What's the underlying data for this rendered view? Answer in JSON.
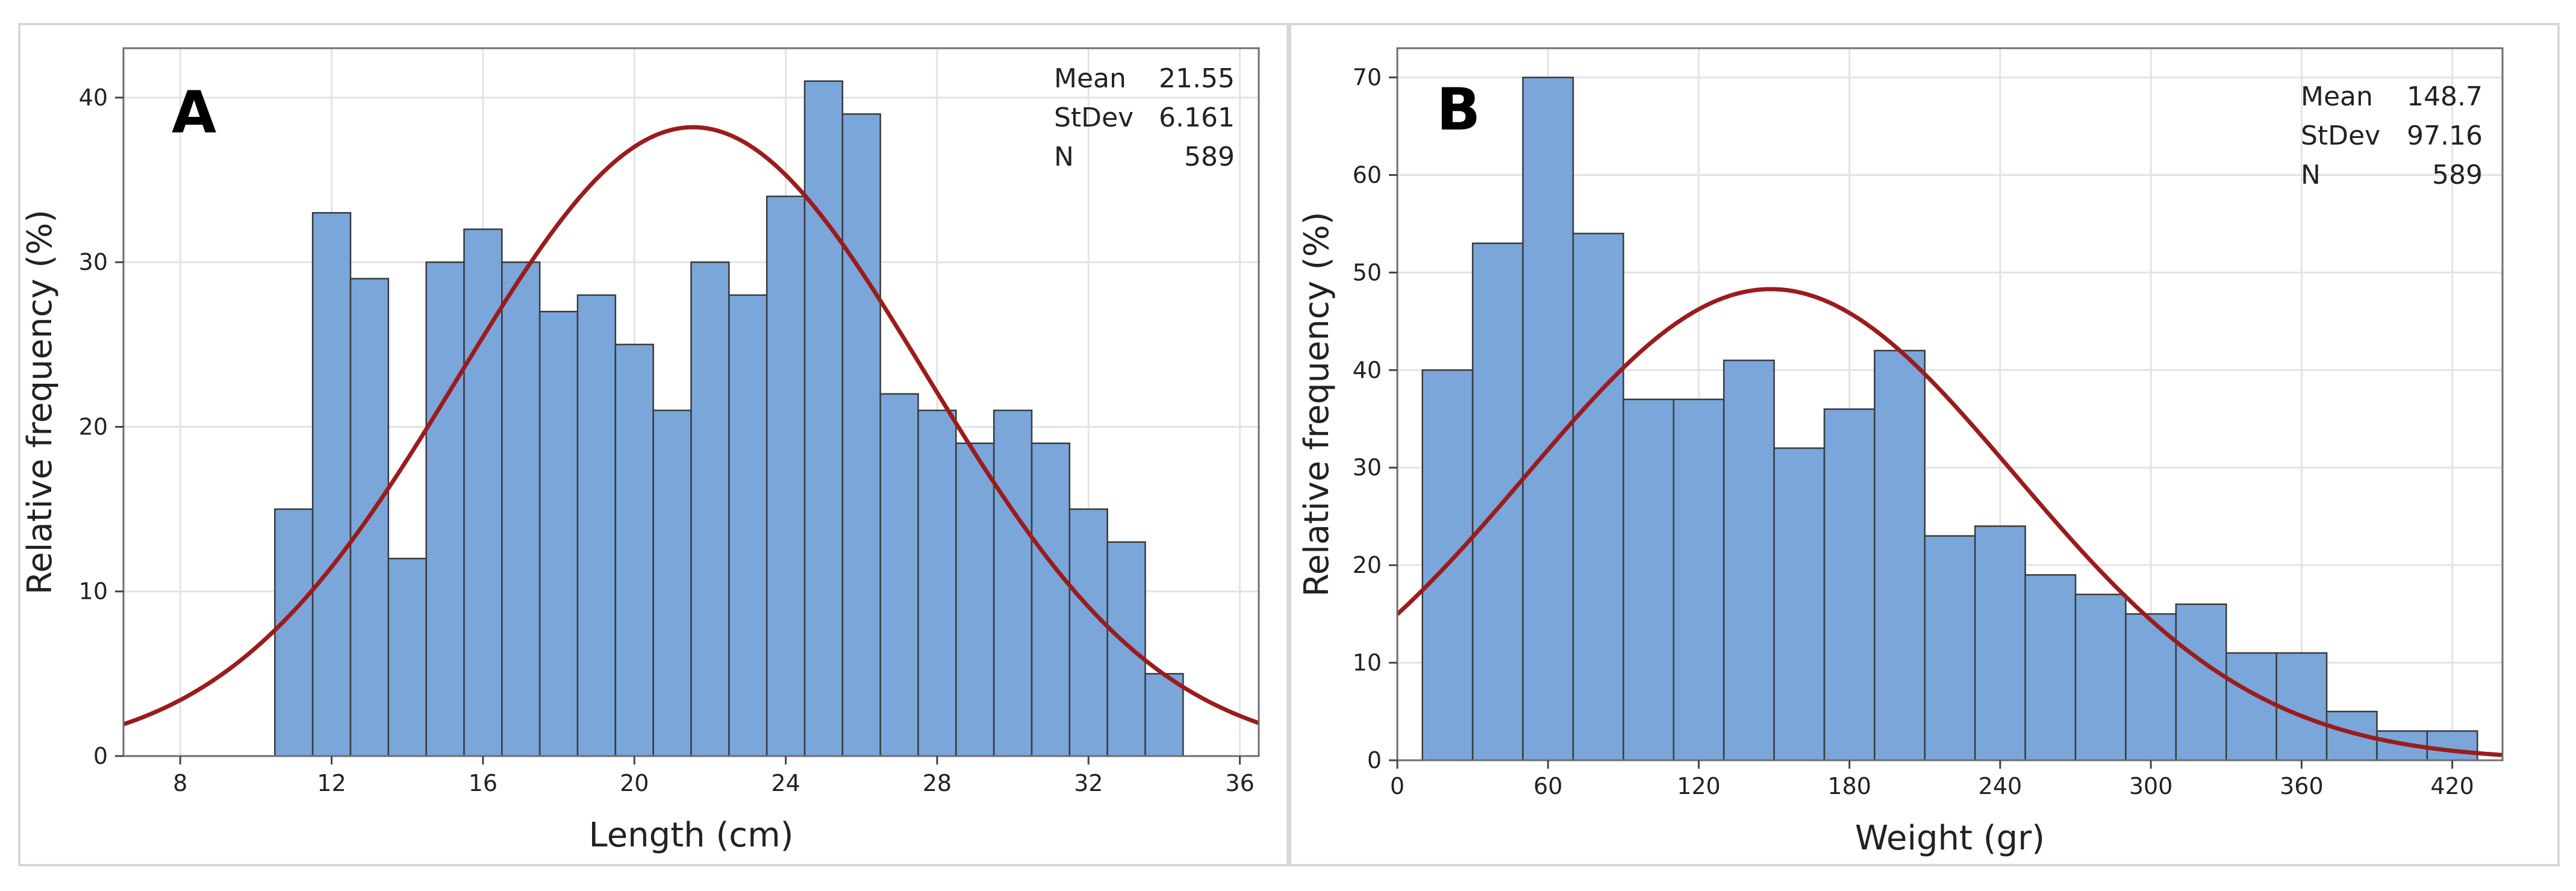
{
  "chart_data": [
    {
      "type": "bar",
      "panel_label": "A",
      "title": "",
      "xlabel": "Length (cm)",
      "ylabel": "Relative frequency (%)",
      "xlim": [
        6.5,
        36.5
      ],
      "ylim": [
        0,
        43
      ],
      "xticks": [
        8,
        12,
        16,
        20,
        24,
        28,
        32,
        36
      ],
      "yticks": [
        0,
        10,
        20,
        30,
        40
      ],
      "bin_start": 10.5,
      "bin_width": 1,
      "values": [
        15,
        33,
        29,
        12,
        30,
        32,
        30,
        27,
        28,
        25,
        21,
        30,
        28,
        34,
        41,
        39,
        22,
        21,
        19,
        21,
        19,
        15,
        13,
        5
      ],
      "grid": true,
      "bar_color": "#7aa6da",
      "curve_color": "#9b1c1c",
      "fit": {
        "mean": 21.55,
        "stdev": 6.161,
        "peak": 38.2
      },
      "stats": [
        {
          "label": "Mean",
          "value": "21.55"
        },
        {
          "label": "StDev",
          "value": "6.161"
        },
        {
          "label": "N",
          "value": "589"
        }
      ]
    },
    {
      "type": "bar",
      "panel_label": "B",
      "title": "",
      "xlabel": "Weight (gr)",
      "ylabel": "Relative frequency (%)",
      "xlim": [
        0,
        440
      ],
      "ylim": [
        0,
        73
      ],
      "xticks": [
        0,
        60,
        120,
        180,
        240,
        300,
        360,
        420
      ],
      "yticks": [
        0,
        10,
        20,
        30,
        40,
        50,
        60,
        70
      ],
      "bin_start": 10,
      "bin_width": 20,
      "values": [
        40,
        53,
        70,
        54,
        37,
        37,
        41,
        32,
        36,
        42,
        23,
        24,
        19,
        17,
        15,
        16,
        11,
        11,
        5,
        3,
        3
      ],
      "grid": true,
      "bar_color": "#7aa6da",
      "curve_color": "#9b1c1c",
      "fit": {
        "mean": 148.7,
        "stdev": 97.16,
        "peak": 48.3
      },
      "stats": [
        {
          "label": "Mean",
          "value": "148.7"
        },
        {
          "label": "StDev",
          "value": "97.16"
        },
        {
          "label": "N",
          "value": "589"
        }
      ]
    }
  ]
}
